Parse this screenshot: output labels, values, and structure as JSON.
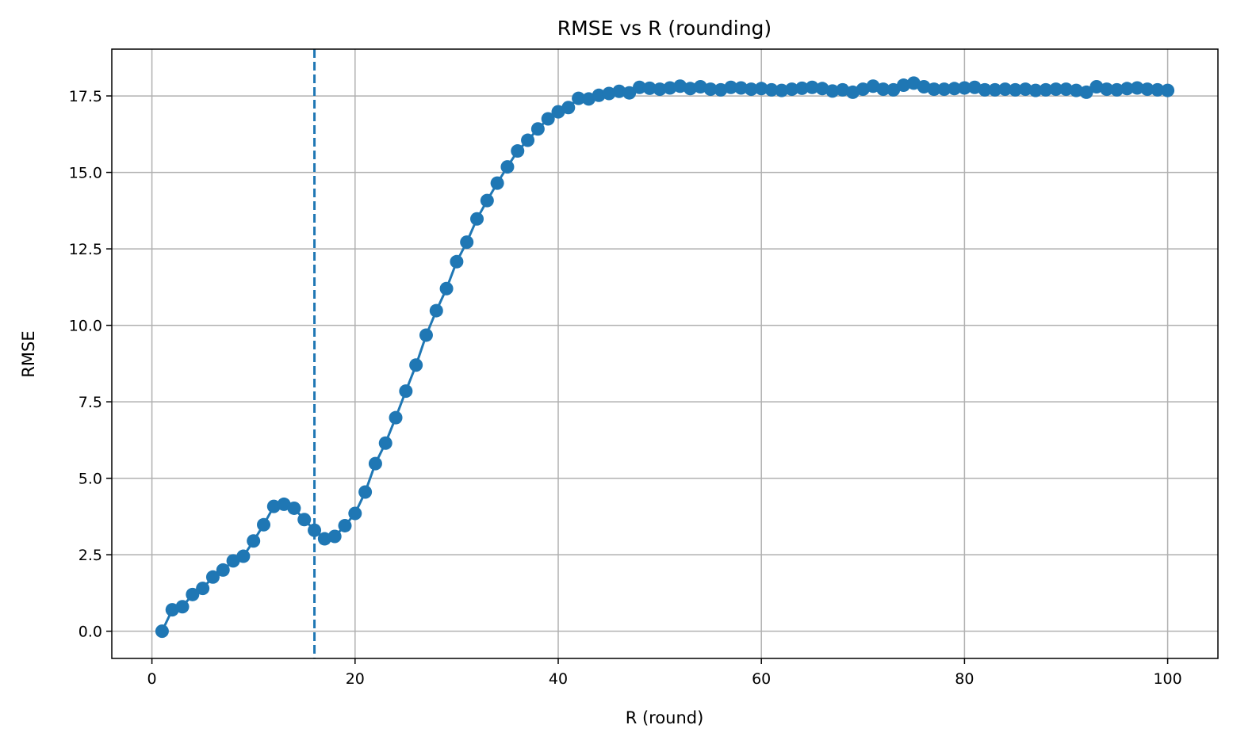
{
  "chart_data": {
    "type": "line",
    "title": "RMSE vs R (rounding)",
    "xlabel": "R (round)",
    "ylabel": "RMSE",
    "xlim": [
      -3.95,
      104.95
    ],
    "ylim": [
      -0.89,
      19.03
    ],
    "xticks": [
      0,
      20,
      40,
      60,
      80,
      100
    ],
    "yticks": [
      0.0,
      2.5,
      5.0,
      7.5,
      10.0,
      12.5,
      15.0,
      17.5
    ],
    "xtick_labels": [
      "0",
      "20",
      "40",
      "60",
      "80",
      "100"
    ],
    "ytick_labels": [
      "0.0",
      "2.5",
      "5.0",
      "7.5",
      "10.0",
      "12.5",
      "15.0",
      "17.5"
    ],
    "grid": true,
    "color": "#1f77b4",
    "markers": "circle",
    "error_bars": true,
    "vline": {
      "x": 16,
      "style": "dashed"
    },
    "series": [
      {
        "x": [
          1,
          2,
          3,
          4,
          5,
          6,
          7,
          8,
          9,
          10,
          11,
          12,
          13,
          14,
          15,
          16,
          17,
          18,
          19,
          20,
          21,
          22,
          23,
          24,
          25,
          26,
          27,
          28,
          29,
          30,
          31,
          32,
          33,
          34,
          35,
          36,
          37,
          38,
          39,
          40,
          41,
          42,
          43,
          44,
          45,
          46,
          47,
          48,
          49,
          50,
          51,
          52,
          53,
          54,
          55,
          56,
          57,
          58,
          59,
          60,
          61,
          62,
          63,
          64,
          65,
          66,
          67,
          68,
          69,
          70,
          71,
          72,
          73,
          74,
          75,
          76,
          77,
          78,
          79,
          80,
          81,
          82,
          83,
          84,
          85,
          86,
          87,
          88,
          89,
          90,
          91,
          92,
          93,
          94,
          95,
          96,
          97,
          98,
          99,
          100
        ],
        "y": [
          0.0,
          0.7,
          0.8,
          1.2,
          1.4,
          1.77,
          2.0,
          2.3,
          2.45,
          2.95,
          3.48,
          4.08,
          4.15,
          4.02,
          3.65,
          3.3,
          3.02,
          3.1,
          3.45,
          3.85,
          4.55,
          5.48,
          6.15,
          6.98,
          7.85,
          8.7,
          9.68,
          10.48,
          11.2,
          12.08,
          12.72,
          13.48,
          14.08,
          14.65,
          15.18,
          15.7,
          16.05,
          16.42,
          16.75,
          16.98,
          17.12,
          17.42,
          17.4,
          17.52,
          17.58,
          17.65,
          17.6,
          17.78,
          17.75,
          17.72,
          17.76,
          17.82,
          17.74,
          17.8,
          17.72,
          17.7,
          17.78,
          17.76,
          17.72,
          17.74,
          17.7,
          17.68,
          17.72,
          17.75,
          17.78,
          17.74,
          17.66,
          17.7,
          17.62,
          17.72,
          17.82,
          17.72,
          17.7,
          17.85,
          17.92,
          17.8,
          17.72,
          17.72,
          17.74,
          17.76,
          17.78,
          17.7,
          17.7,
          17.72,
          17.7,
          17.72,
          17.68,
          17.7,
          17.72,
          17.72,
          17.68,
          17.62,
          17.8,
          17.72,
          17.7,
          17.74,
          17.76,
          17.72,
          17.7,
          17.68
        ],
        "err": [
          0.02,
          0.05,
          0.05,
          0.05,
          0.05,
          0.05,
          0.05,
          0.05,
          0.06,
          0.06,
          0.07,
          0.07,
          0.07,
          0.07,
          0.07,
          0.07,
          0.07,
          0.07,
          0.07,
          0.08,
          0.1,
          0.1,
          0.1,
          0.12,
          0.12,
          0.12,
          0.1,
          0.1,
          0.1,
          0.1,
          0.1,
          0.1,
          0.1,
          0.1,
          0.1,
          0.08,
          0.08,
          0.08,
          0.08,
          0.08,
          0.08,
          0.1,
          0.1,
          0.1,
          0.1,
          0.12,
          0.12,
          0.12,
          0.12,
          0.12,
          0.12,
          0.12,
          0.12,
          0.12,
          0.12,
          0.1,
          0.1,
          0.1,
          0.1,
          0.12,
          0.12,
          0.12,
          0.12,
          0.12,
          0.14,
          0.12,
          0.12,
          0.16,
          0.16,
          0.14,
          0.14,
          0.12,
          0.12,
          0.12,
          0.12,
          0.12,
          0.16,
          0.14,
          0.12,
          0.12,
          0.14,
          0.16,
          0.12,
          0.12,
          0.12,
          0.12,
          0.12,
          0.12,
          0.12,
          0.12,
          0.12,
          0.14,
          0.12,
          0.12,
          0.14,
          0.14,
          0.12,
          0.12,
          0.12,
          0.14
        ]
      }
    ]
  }
}
